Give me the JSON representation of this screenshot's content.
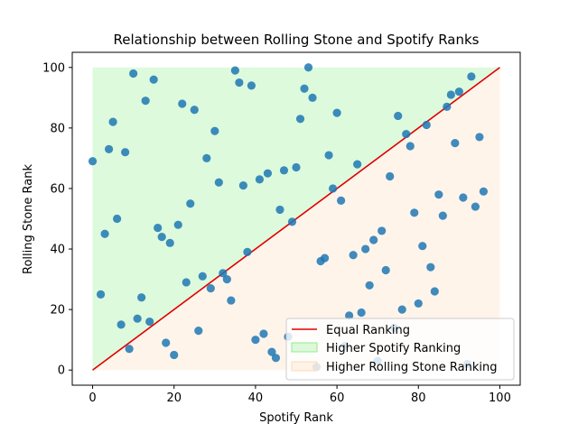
{
  "chart_data": {
    "type": "scatter",
    "title": "Relationship between Rolling Stone and Spotify Ranks",
    "xlabel": "Spotify Rank",
    "ylabel": "Rolling Stone Rank",
    "xlim": [
      -5,
      105
    ],
    "ylim": [
      -5,
      105
    ],
    "xticks": [
      0,
      20,
      40,
      60,
      80,
      100
    ],
    "yticks": [
      0,
      20,
      40,
      60,
      80,
      100
    ],
    "grid": false,
    "legend_position": "lower-right",
    "colors": {
      "points": "#1f77b4",
      "equal_line": "#e00000",
      "higher_spotify": "#90ee90",
      "higher_rolling_stone": "#ffdab9"
    },
    "series": [
      {
        "name": "Equal Ranking",
        "kind": "line",
        "x": [
          0,
          100
        ],
        "y": [
          0,
          100
        ]
      },
      {
        "name": "Higher Spotify Ranking",
        "kind": "area"
      },
      {
        "name": "Higher Rolling Stone Ranking",
        "kind": "area"
      }
    ],
    "points": [
      {
        "x": 0,
        "y": 69
      },
      {
        "x": 2,
        "y": 25
      },
      {
        "x": 3,
        "y": 45
      },
      {
        "x": 4,
        "y": 73
      },
      {
        "x": 5,
        "y": 82
      },
      {
        "x": 6,
        "y": 50
      },
      {
        "x": 7,
        "y": 15
      },
      {
        "x": 8,
        "y": 72
      },
      {
        "x": 9,
        "y": 7
      },
      {
        "x": 10,
        "y": 98
      },
      {
        "x": 11,
        "y": 17
      },
      {
        "x": 12,
        "y": 24
      },
      {
        "x": 13,
        "y": 89
      },
      {
        "x": 14,
        "y": 16
      },
      {
        "x": 15,
        "y": 96
      },
      {
        "x": 16,
        "y": 47
      },
      {
        "x": 17,
        "y": 44
      },
      {
        "x": 18,
        "y": 9
      },
      {
        "x": 19,
        "y": 42
      },
      {
        "x": 20,
        "y": 5
      },
      {
        "x": 21,
        "y": 48
      },
      {
        "x": 22,
        "y": 88
      },
      {
        "x": 23,
        "y": 29
      },
      {
        "x": 24,
        "y": 55
      },
      {
        "x": 25,
        "y": 86
      },
      {
        "x": 26,
        "y": 13
      },
      {
        "x": 27,
        "y": 31
      },
      {
        "x": 28,
        "y": 70
      },
      {
        "x": 29,
        "y": 27
      },
      {
        "x": 30,
        "y": 79
      },
      {
        "x": 31,
        "y": 62
      },
      {
        "x": 32,
        "y": 32
      },
      {
        "x": 33,
        "y": 30
      },
      {
        "x": 34,
        "y": 23
      },
      {
        "x": 35,
        "y": 99
      },
      {
        "x": 36,
        "y": 95
      },
      {
        "x": 37,
        "y": 61
      },
      {
        "x": 38,
        "y": 39
      },
      {
        "x": 39,
        "y": 94
      },
      {
        "x": 40,
        "y": 10
      },
      {
        "x": 41,
        "y": 63
      },
      {
        "x": 42,
        "y": 12
      },
      {
        "x": 43,
        "y": 65
      },
      {
        "x": 44,
        "y": 6
      },
      {
        "x": 45,
        "y": 4
      },
      {
        "x": 46,
        "y": 53
      },
      {
        "x": 47,
        "y": 66
      },
      {
        "x": 48,
        "y": 11
      },
      {
        "x": 49,
        "y": 49
      },
      {
        "x": 50,
        "y": 67
      },
      {
        "x": 51,
        "y": 83
      },
      {
        "x": 52,
        "y": 93
      },
      {
        "x": 53,
        "y": 100
      },
      {
        "x": 54,
        "y": 90
      },
      {
        "x": 55,
        "y": 1
      },
      {
        "x": 56,
        "y": 36
      },
      {
        "x": 57,
        "y": 37
      },
      {
        "x": 58,
        "y": 71
      },
      {
        "x": 59,
        "y": 60
      },
      {
        "x": 60,
        "y": 85
      },
      {
        "x": 61,
        "y": 56
      },
      {
        "x": 62,
        "y": 8
      },
      {
        "x": 63,
        "y": 18
      },
      {
        "x": 64,
        "y": 38
      },
      {
        "x": 65,
        "y": 68
      },
      {
        "x": 66,
        "y": 19
      },
      {
        "x": 67,
        "y": 40
      },
      {
        "x": 68,
        "y": 28
      },
      {
        "x": 69,
        "y": 43
      },
      {
        "x": 70,
        "y": 3
      },
      {
        "x": 71,
        "y": 46
      },
      {
        "x": 72,
        "y": 33
      },
      {
        "x": 73,
        "y": 64
      },
      {
        "x": 74,
        "y": 14
      },
      {
        "x": 75,
        "y": 84
      },
      {
        "x": 76,
        "y": 20
      },
      {
        "x": 77,
        "y": 78
      },
      {
        "x": 78,
        "y": 74
      },
      {
        "x": 79,
        "y": 52
      },
      {
        "x": 80,
        "y": 22
      },
      {
        "x": 81,
        "y": 41
      },
      {
        "x": 82,
        "y": 81
      },
      {
        "x": 83,
        "y": 34
      },
      {
        "x": 84,
        "y": 26
      },
      {
        "x": 85,
        "y": 58
      },
      {
        "x": 86,
        "y": 51
      },
      {
        "x": 87,
        "y": 87
      },
      {
        "x": 88,
        "y": 91
      },
      {
        "x": 89,
        "y": 75
      },
      {
        "x": 90,
        "y": 92
      },
      {
        "x": 91,
        "y": 57
      },
      {
        "x": 92,
        "y": 2
      },
      {
        "x": 93,
        "y": 97
      },
      {
        "x": 94,
        "y": 54
      },
      {
        "x": 95,
        "y": 77
      },
      {
        "x": 96,
        "y": 59
      }
    ]
  }
}
